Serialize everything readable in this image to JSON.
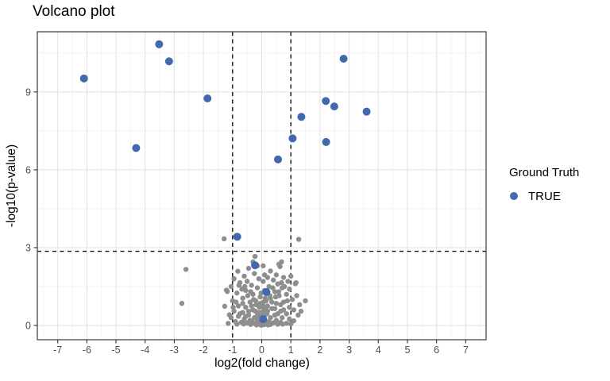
{
  "title": "Volcano plot",
  "legend": {
    "title": "Ground Truth",
    "items": [
      {
        "label": "TRUE",
        "color": "#4268ae"
      }
    ]
  },
  "colors": {
    "true_point": "#4268ae",
    "background_point": "#8e8e8e",
    "grid_major": "#e4e4e4",
    "grid_minor": "#f1f1f1",
    "panel_border": "#474747",
    "tick_text": "#4d4d4d",
    "threshold_line": "#111111"
  },
  "chart_data": {
    "type": "scatter",
    "title": "Volcano plot",
    "xlabel": "log2(fold change)",
    "ylabel": "-log10(p-value)",
    "xlim": [
      -7.7,
      7.7
    ],
    "ylim": [
      -0.55,
      11.32
    ],
    "x_ticks": [
      -7,
      -6,
      -5,
      -4,
      -3,
      -2,
      -1,
      0,
      1,
      2,
      3,
      4,
      5,
      6,
      7
    ],
    "y_ticks": [
      0,
      3,
      6,
      9
    ],
    "x_minor": [
      -7.5,
      -6.5,
      -5.5,
      -4.5,
      -3.5,
      -2.5,
      -1.5,
      -0.5,
      0.5,
      1.5,
      2.5,
      3.5,
      4.5,
      5.5,
      6.5,
      7.5
    ],
    "y_minor": [
      1.5,
      4.5,
      7.5,
      10.5
    ],
    "grid": "major+minor",
    "legend_position": "right",
    "threshold_lines": {
      "vertical_x": [
        -1,
        1
      ],
      "horizontal_y": 2.86,
      "style": "dashed"
    },
    "series": [
      {
        "name": "background",
        "in_legend": false,
        "color": "#8e8e8e",
        "radius": 3.2,
        "points": [
          [
            -2.6,
            2.16
          ],
          [
            -2.74,
            0.85
          ],
          [
            -1.29,
            3.34
          ],
          [
            1.27,
            3.32
          ],
          [
            1.5,
            0.95
          ],
          [
            -0.23,
            2.66
          ],
          [
            -0.82,
            2.09
          ],
          [
            -0.45,
            2.2
          ],
          [
            -0.3,
            2.45
          ],
          [
            -0.15,
            2.3
          ],
          [
            0.05,
            2.3
          ],
          [
            0.3,
            2.1
          ],
          [
            0.63,
            2.27
          ],
          [
            0.59,
            2.36
          ],
          [
            0.5,
            1.95
          ],
          [
            -0.6,
            1.9
          ],
          [
            -0.25,
            2.0
          ],
          [
            0.1,
            1.95
          ],
          [
            0.75,
            1.85
          ],
          [
            -0.95,
            1.8
          ],
          [
            1.0,
            1.9
          ],
          [
            0.2,
            1.85
          ],
          [
            -0.1,
            1.8
          ],
          [
            0.4,
            1.75
          ],
          [
            -0.5,
            1.7
          ],
          [
            0.9,
            1.7
          ],
          [
            -0.75,
            1.65
          ],
          [
            0.05,
            1.7
          ],
          [
            0.55,
            1.6
          ],
          [
            1.15,
            1.61
          ],
          [
            1.18,
            1.65
          ],
          [
            -0.35,
            1.55
          ],
          [
            0.25,
            1.5
          ],
          [
            -1.05,
            1.5
          ],
          [
            0.7,
            1.45
          ],
          [
            -0.15,
            1.45
          ],
          [
            0.95,
            1.4
          ],
          [
            -0.55,
            1.35
          ],
          [
            -1.21,
            1.36
          ],
          [
            0.1,
            1.35
          ],
          [
            0.45,
            1.3
          ],
          [
            -0.85,
            1.25
          ],
          [
            -1.18,
            1.31
          ],
          [
            0.85,
            1.2
          ],
          [
            -0.3,
            1.2
          ],
          [
            0.6,
            1.15
          ],
          [
            1.2,
            1.15
          ],
          [
            -0.05,
            1.1
          ],
          [
            -0.65,
            1.05
          ],
          [
            0.3,
            1.05
          ],
          [
            1.05,
            1.0
          ],
          [
            -1.0,
            0.95
          ],
          [
            0.15,
            0.95
          ],
          [
            -0.4,
            0.9
          ],
          [
            0.75,
            0.9
          ],
          [
            0.5,
            0.85
          ],
          [
            -0.2,
            0.8
          ],
          [
            1.3,
            0.8
          ],
          [
            -0.8,
            0.75
          ],
          [
            0.05,
            0.75
          ],
          [
            0.95,
            0.7
          ],
          [
            -0.55,
            0.7
          ],
          [
            0.35,
            0.65
          ],
          [
            -1.11,
            0.41
          ],
          [
            1.1,
            0.6
          ],
          [
            -0.3,
            0.6
          ],
          [
            0.65,
            0.55
          ],
          [
            -0.95,
            0.55
          ],
          [
            0.2,
            0.55
          ],
          [
            -0.65,
            0.5
          ],
          [
            0.85,
            0.45
          ],
          [
            -0.1,
            0.5
          ],
          [
            0.45,
            0.4
          ],
          [
            -0.45,
            0.4
          ],
          [
            1.25,
            0.4
          ],
          [
            0.1,
            0.4
          ],
          [
            -0.8,
            0.35
          ],
          [
            0.7,
            0.3
          ],
          [
            -0.25,
            0.3
          ],
          [
            0.3,
            0.3
          ],
          [
            -1.05,
            0.3
          ],
          [
            0.95,
            0.25
          ],
          [
            -0.6,
            0.25
          ],
          [
            0.5,
            0.2
          ],
          [
            -0.4,
            0.2
          ],
          [
            1.1,
            0.18
          ],
          [
            -0.15,
            0.18
          ],
          [
            0.25,
            0.15
          ],
          [
            -0.9,
            0.15
          ],
          [
            0.65,
            0.12
          ],
          [
            -0.7,
            0.12
          ],
          [
            0,
            0.12
          ],
          [
            0.4,
            0.1
          ],
          [
            -0.5,
            0.1
          ],
          [
            0.85,
            0.08
          ],
          [
            -0.28,
            0.08
          ],
          [
            0.15,
            0.07
          ],
          [
            -1.15,
            0.08
          ],
          [
            0.55,
            0.05
          ],
          [
            -0.08,
            0.05
          ],
          [
            0.3,
            0.04
          ],
          [
            -0.38,
            0.04
          ],
          [
            0.08,
            0.03
          ],
          [
            -0.18,
            0.02
          ],
          [
            0.22,
            0.02
          ],
          [
            -0.02,
            0.01
          ],
          [
            0.12,
            0.05
          ],
          [
            -0.62,
            0.06
          ],
          [
            0.72,
            0.05
          ],
          [
            -0.85,
            0.05
          ],
          [
            1.0,
            0.06
          ],
          [
            -0.33,
            0.14
          ],
          [
            0.02,
            0.3
          ],
          [
            -0.12,
            0.35
          ],
          [
            0.18,
            0.45
          ],
          [
            -0.22,
            0.55
          ],
          [
            0.08,
            0.65
          ],
          [
            -0.05,
            0.85
          ],
          [
            0.12,
            1.05
          ],
          [
            -0.02,
            1.25
          ],
          [
            0.02,
            0.5
          ],
          [
            -0.08,
            0.7
          ],
          [
            0.06,
            0.9
          ],
          [
            0,
            0.05
          ],
          [
            -0.05,
            0.15
          ],
          [
            0.05,
            0.1
          ],
          [
            -0.1,
            0.08
          ],
          [
            0.1,
            0.2
          ],
          [
            -0.15,
            0.4
          ],
          [
            0.15,
            0.6
          ],
          [
            -0.2,
            0.95
          ],
          [
            0.2,
            0.75
          ],
          [
            -0.05,
            0.45
          ],
          [
            0.05,
            0.55
          ],
          [
            0.35,
            0.9
          ],
          [
            -0.35,
            0.75
          ],
          [
            0.45,
            0.65
          ],
          [
            -0.45,
            0.55
          ],
          [
            0.55,
            0.45
          ],
          [
            -0.55,
            0.35
          ],
          [
            0.65,
            0.8
          ],
          [
            -0.65,
            0.85
          ],
          [
            0.75,
            0.6
          ],
          [
            -0.75,
            0.45
          ],
          [
            0.88,
            0.95
          ],
          [
            -0.88,
            0.9
          ],
          [
            1.35,
            0.55
          ],
          [
            -0.98,
            0.7
          ],
          [
            0.28,
            1.15
          ],
          [
            -0.28,
            1.0
          ],
          [
            0.38,
            1.45
          ],
          [
            -0.38,
            1.3
          ],
          [
            0.48,
            1.1
          ],
          [
            -0.48,
            1.15
          ],
          [
            0.58,
            1.3
          ],
          [
            -0.58,
            1.5
          ],
          [
            0.68,
            1.65
          ],
          [
            -0.68,
            1.4
          ],
          [
            0.78,
            1.5
          ],
          [
            -0.78,
            1.55
          ],
          [
            0.68,
            2.45
          ],
          [
            -1.27,
            0.74
          ]
        ]
      },
      {
        "name": "TRUE",
        "in_legend": true,
        "color": "#4268ae",
        "radius": 5,
        "points": [
          [
            -6.1,
            9.52
          ],
          [
            -3.52,
            10.84
          ],
          [
            -3.18,
            10.18
          ],
          [
            -4.31,
            6.84
          ],
          [
            -1.86,
            8.75
          ],
          [
            -0.84,
            3.42
          ],
          [
            -0.23,
            2.32
          ],
          [
            0.16,
            1.29
          ],
          [
            0.05,
            0.24
          ],
          [
            0.56,
            6.4
          ],
          [
            1.06,
            7.21
          ],
          [
            1.36,
            8.04
          ],
          [
            2.2,
            8.65
          ],
          [
            2.49,
            8.44
          ],
          [
            2.21,
            7.07
          ],
          [
            2.81,
            10.28
          ],
          [
            3.6,
            8.24
          ]
        ]
      }
    ]
  }
}
